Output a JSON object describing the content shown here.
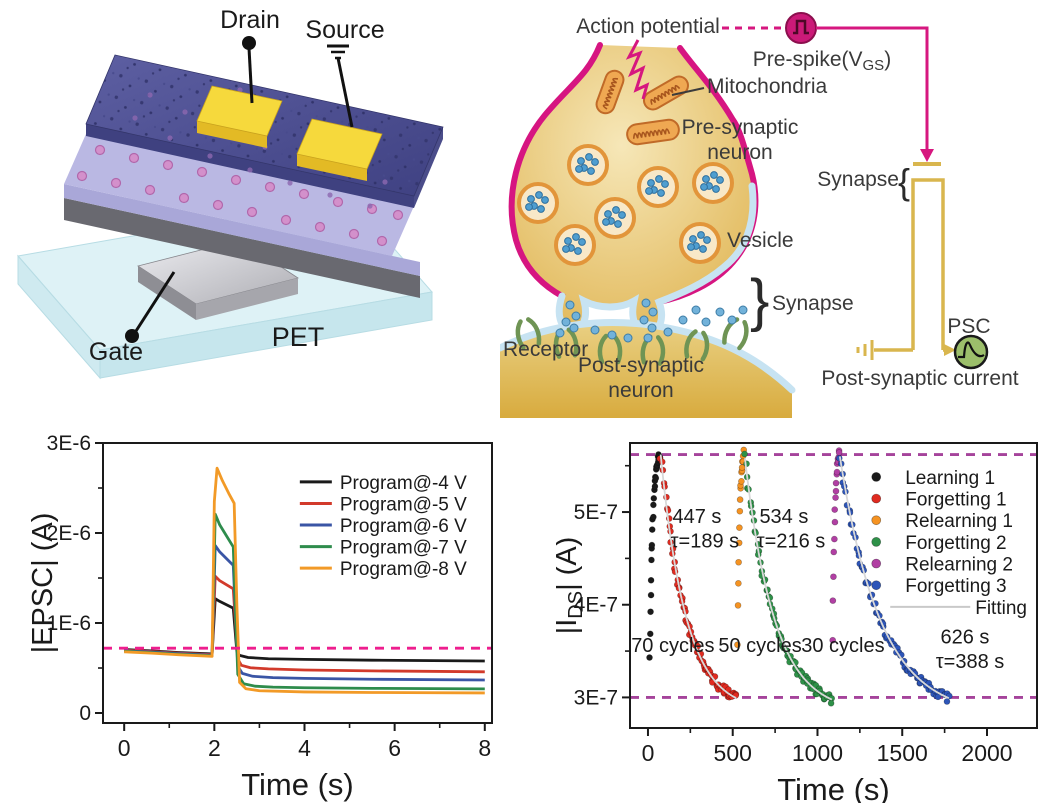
{
  "device": {
    "drain": "Drain",
    "source": "Source",
    "gate": "Gate",
    "substrate": "PET"
  },
  "synapse": {
    "action_potential": "Action potential",
    "mitochondria": "Mitochondria",
    "pre_synaptic_line1": "Pre-synaptic",
    "pre_synaptic_line2": "neuron",
    "vesicle": "Vesicle",
    "synapse_cleft": "Synapse",
    "cleft_brace": "}",
    "receptor": "Receptor",
    "post_synaptic_line1": "Post-synaptic",
    "post_synaptic_line2": "neuron",
    "pre_spike": {
      "pre": "Pre-spike(V",
      "sub": "GS",
      "post": ")"
    },
    "synapse_device": "Synapse",
    "device_brace": "{",
    "psc": "PSC",
    "post_synaptic_current": "Post-synaptic current",
    "accent_magenta": "#d61581",
    "wire_yellow": "#d9b64e"
  },
  "chart_data": [
    {
      "type": "line",
      "name": "epsc-vs-time",
      "xlabel": "Time (s)",
      "ylabel": "|EPSC| (A)",
      "y_unit": "1E-6 A",
      "xlim": [
        -0.47,
        8.16
      ],
      "ylim": [
        -0.111,
        3.0
      ],
      "xticks": {
        "major": [
          0,
          2,
          4,
          6,
          8
        ],
        "minor": [
          1,
          3,
          5,
          7
        ],
        "labels": [
          "0",
          "2",
          "4",
          "6",
          "8"
        ]
      },
      "yticks": {
        "major": [
          0,
          1,
          2,
          3
        ],
        "minor": [
          0.5,
          1.5,
          2.5
        ],
        "labels": [
          "0",
          "1E-6",
          "2E-6",
          "3E-6"
        ]
      },
      "ref_lines": [
        {
          "y": 0.72,
          "color": "#ee1e8e",
          "on_top": true
        }
      ],
      "legend": {
        "x": 0.506,
        "y": 0.139,
        "row_h": 0.077,
        "swatch": "line"
      },
      "series": [
        {
          "name": "Program@-4 V",
          "color": "#1a1a1a",
          "points": [
            [
              0,
              0.705
            ],
            [
              0.6,
              0.69
            ],
            [
              1.2,
              0.672
            ],
            [
              1.95,
              0.657
            ],
            [
              2.02,
              1.27
            ],
            [
              2.12,
              1.24
            ],
            [
              2.42,
              1.165
            ],
            [
              2.5,
              0.68
            ],
            [
              2.56,
              0.64
            ],
            [
              2.75,
              0.617
            ],
            [
              3.2,
              0.603
            ],
            [
              4,
              0.596
            ],
            [
              5.5,
              0.587
            ],
            [
              8,
              0.578
            ]
          ]
        },
        {
          "name": "Program@-5 V",
          "color": "#d23a2b",
          "points": [
            [
              0,
              0.698
            ],
            [
              0.6,
              0.683
            ],
            [
              1.2,
              0.665
            ],
            [
              1.95,
              0.649
            ],
            [
              2.02,
              1.52
            ],
            [
              2.12,
              1.47
            ],
            [
              2.42,
              1.38
            ],
            [
              2.52,
              0.6
            ],
            [
              2.6,
              0.53
            ],
            [
              2.8,
              0.503
            ],
            [
              3.2,
              0.49
            ],
            [
              4,
              0.478
            ],
            [
              5.5,
              0.468
            ],
            [
              8,
              0.458
            ]
          ]
        },
        {
          "name": "Program@-6 V",
          "color": "#3a55a5",
          "points": [
            [
              0,
              0.692
            ],
            [
              0.6,
              0.677
            ],
            [
              1.2,
              0.659
            ],
            [
              1.95,
              0.642
            ],
            [
              2.02,
              1.86
            ],
            [
              2.12,
              1.79
            ],
            [
              2.42,
              1.64
            ],
            [
              2.52,
              0.52
            ],
            [
              2.62,
              0.44
            ],
            [
              2.85,
              0.408
            ],
            [
              3.3,
              0.393
            ],
            [
              4,
              0.385
            ],
            [
              5.5,
              0.375
            ],
            [
              8,
              0.367
            ]
          ]
        },
        {
          "name": "Program@-7 V",
          "color": "#2e8c4c",
          "points": [
            [
              0,
              0.686
            ],
            [
              0.6,
              0.671
            ],
            [
              1.2,
              0.653
            ],
            [
              1.95,
              0.636
            ],
            [
              2.02,
              2.21
            ],
            [
              2.12,
              2.09
            ],
            [
              2.42,
              1.845
            ],
            [
              2.52,
              0.43
            ],
            [
              2.65,
              0.325
            ],
            [
              2.9,
              0.298
            ],
            [
              3.3,
              0.288
            ],
            [
              4,
              0.281
            ],
            [
              5.5,
              0.274
            ],
            [
              8,
              0.268
            ]
          ]
        },
        {
          "name": "Program@-8 V",
          "color": "#f29a27",
          "points": [
            [
              0,
              0.68
            ],
            [
              0.6,
              0.665
            ],
            [
              1.2,
              0.647
            ],
            [
              1.95,
              0.63
            ],
            [
              2.0,
              2.35
            ],
            [
              2.06,
              2.72
            ],
            [
              2.18,
              2.58
            ],
            [
              2.32,
              2.44
            ],
            [
              2.44,
              2.33
            ],
            [
              2.5,
              1.2
            ],
            [
              2.56,
              0.34
            ],
            [
              2.7,
              0.27
            ],
            [
              3.0,
              0.247
            ],
            [
              4,
              0.234
            ],
            [
              5.5,
              0.228
            ],
            [
              8,
              0.223
            ]
          ]
        }
      ]
    },
    {
      "type": "scatter",
      "name": "ids-vs-time",
      "xlabel": "Time (s)",
      "ylabel": "|IDS| (A)",
      "ylabel_parts": [
        {
          "t": "|I"
        },
        {
          "t": "DS",
          "sub": true
        },
        {
          "t": "| (A)"
        }
      ],
      "y_unit": "1E-7 A",
      "xlim": [
        -106,
        2295
      ],
      "ylim": [
        2.67,
        5.745
      ],
      "xticks": {
        "major": [
          0,
          500,
          1000,
          1500,
          2000
        ],
        "minor": [
          250,
          750,
          1250,
          1750
        ],
        "labels": [
          "0",
          "500",
          "1000",
          "1500",
          "2000"
        ]
      },
      "yticks": {
        "major": [
          3,
          4,
          5
        ],
        "minor": [
          3.5,
          4.5,
          5.5
        ],
        "labels": [
          "3E-7",
          "4E-7",
          "5E-7"
        ]
      },
      "ref_lines": [
        {
          "y": 5.62,
          "color": "#a5439b"
        },
        {
          "y": 3.0,
          "color": "#a5439b"
        }
      ],
      "legend": {
        "x": 0.605,
        "y": 0.119,
        "row_h": 0.076,
        "swatch": "dot"
      },
      "series": [
        {
          "name": "Learning 1",
          "color": "#1a1a1a",
          "gen": {
            "kind": "rise",
            "x0": 10,
            "x1": 70,
            "y0": 3.45,
            "yinf": 5.7,
            "tau": 18,
            "n": 30,
            "jx": 2.5,
            "jy": 0.05
          }
        },
        {
          "name": "Forgetting 1",
          "color": "#e02b20",
          "fit": true,
          "gen": {
            "kind": "decay",
            "x0": 75,
            "x1": 520,
            "y0": 5.62,
            "yinf": 2.85,
            "tau": 150,
            "n": 80,
            "jx": 6,
            "jy": 0.05
          }
        },
        {
          "name": "Relearning 1",
          "color": "#f59322",
          "gen": {
            "kind": "rise",
            "x0": 528,
            "x1": 565,
            "y0": 3.6,
            "yinf": 5.72,
            "tau": 12,
            "n": 18,
            "jx": 2,
            "jy": 0.05
          }
        },
        {
          "name": "Forgetting 2",
          "color": "#2e9148",
          "fit": true,
          "gen": {
            "kind": "decay",
            "x0": 572,
            "x1": 1085,
            "y0": 5.58,
            "yinf": 2.83,
            "tau": 175,
            "n": 80,
            "jx": 6,
            "jy": 0.05
          }
        },
        {
          "name": "Relearning 2",
          "color": "#b13fa3",
          "gen": {
            "kind": "rise",
            "x0": 1090,
            "x1": 1128,
            "y0": 3.65,
            "yinf": 5.72,
            "tau": 12,
            "n": 18,
            "jx": 2,
            "jy": 0.05
          }
        },
        {
          "name": "Forgetting 3",
          "color": "#2d55b8",
          "fit": true,
          "gen": {
            "kind": "decay",
            "x0": 1132,
            "x1": 1775,
            "y0": 5.6,
            "yinf": 2.8,
            "tau": 240,
            "n": 85,
            "jx": 6,
            "jy": 0.05
          }
        },
        {
          "name": "Fitting",
          "color": "#c9c9c9",
          "legend_only": true,
          "swatch": "line"
        }
      ],
      "annotations": [
        {
          "x": 289,
          "y": 4.88,
          "text": "447 s"
        },
        {
          "x": 336,
          "y": 4.62,
          "text": "τ=189 s"
        },
        {
          "x": 802,
          "y": 4.88,
          "text": "534 s"
        },
        {
          "x": 844,
          "y": 4.62,
          "text": "τ=216 s"
        },
        {
          "x": 1870,
          "y": 3.58,
          "text": "626 s"
        },
        {
          "x": 1900,
          "y": 3.32,
          "text": "τ=388 s"
        },
        {
          "x": 147,
          "y": 3.49,
          "text": "70 cycles"
        },
        {
          "x": 661,
          "y": 3.49,
          "text": "50 cycles"
        },
        {
          "x": 1150,
          "y": 3.49,
          "text": "30 cycles"
        }
      ]
    }
  ]
}
